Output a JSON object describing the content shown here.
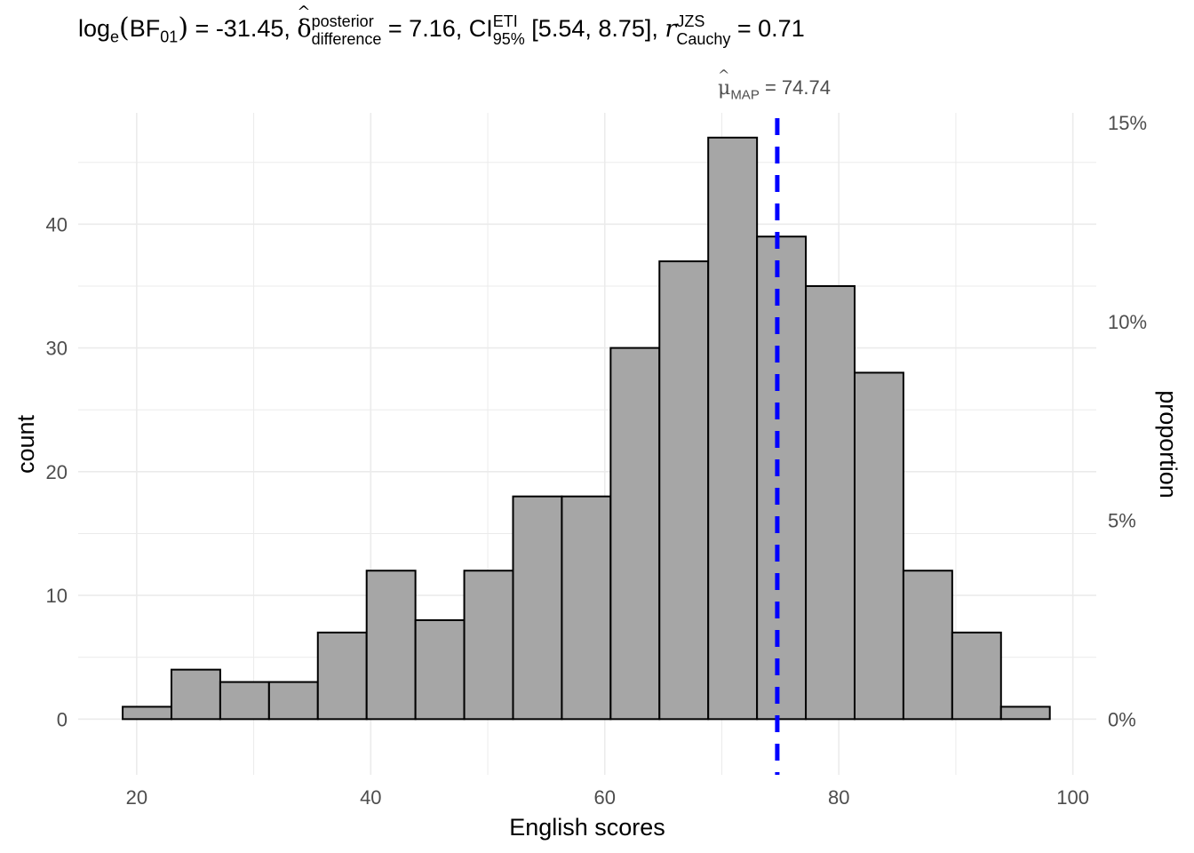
{
  "title": {
    "log_prefix": "log",
    "log_sub": "e",
    "bf": "BF",
    "bf_sub": "01",
    "bf_value": "= -31.45,",
    "delta_symbol": "δ",
    "delta_sup": "posterior",
    "delta_sub": "difference",
    "delta_value": "= 7.16,",
    "ci_label": "CI",
    "ci_sup": "ETI",
    "ci_sub": "95%",
    "ci_value": "[5.54, 8.75],",
    "r_symbol": "r",
    "r_sup": "JZS",
    "r_sub": "Cauchy",
    "r_value": "= 0.71"
  },
  "annotation": {
    "mu_symbol": "μ",
    "mu_sub": "MAP",
    "mu_value": "= 74.74"
  },
  "colors": {
    "bar_fill": "#a6a6a6",
    "bar_stroke": "#000000",
    "map_line": "#0000ff",
    "grid": "#ebebeb",
    "tick_text": "#4d4d4d"
  },
  "chart_data": {
    "type": "bar",
    "subtype": "histogram",
    "xlabel": "English scores",
    "ylabel": "count",
    "y2label": "proportion",
    "xlim": [
      15,
      102
    ],
    "ylim": [
      -4.5,
      49
    ],
    "x_ticks": [
      20,
      40,
      60,
      80,
      100
    ],
    "y_ticks": [
      0,
      10,
      20,
      30,
      40
    ],
    "y2_ticks": [
      "0%",
      "5%",
      "10%",
      "15%"
    ],
    "y2_tick_counts": [
      0,
      16.07,
      32.14,
      48.21
    ],
    "bin_edges": [
      18.8,
      22.97,
      27.14,
      31.31,
      35.48,
      39.65,
      43.82,
      47.99,
      52.16,
      56.33,
      60.5,
      64.67,
      68.84,
      73.01,
      77.18,
      81.35,
      85.52,
      89.69,
      93.86,
      98.03
    ],
    "counts": [
      1,
      4,
      3,
      3,
      7,
      12,
      8,
      12,
      18,
      18,
      30,
      37,
      47,
      39,
      35,
      28,
      12,
      7,
      1
    ],
    "map_estimate": 74.74,
    "grid": true
  }
}
